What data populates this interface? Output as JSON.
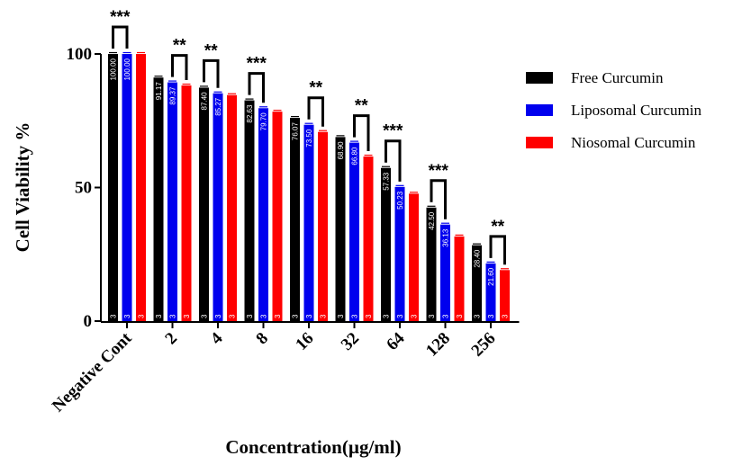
{
  "chart_data": {
    "type": "bar",
    "xlabel": "Concentration(µg/ml)",
    "ylabel": "Cell Viability %",
    "ylim": [
      0,
      100
    ],
    "yticks": [
      0,
      50,
      100
    ],
    "categories": [
      "Negative Cont",
      "2",
      "4",
      "8",
      "16",
      "32",
      "64",
      "128",
      "256"
    ],
    "series": [
      {
        "name": "Free Curcumin",
        "color": "#000000",
        "values": [
          100.0,
          91.17,
          87.4,
          82.63,
          76.07,
          68.9,
          57.33,
          42.5,
          28.4
        ],
        "value_labels": [
          "100.00",
          "91.17",
          "87.40",
          "82.63",
          "76.07",
          "68.90",
          "57.33",
          "42.50",
          "28.40"
        ]
      },
      {
        "name": "Liposomal Curcumin",
        "color": "#0000ee",
        "values": [
          100.0,
          89.37,
          85.27,
          79.7,
          73.5,
          66.8,
          50.23,
          36.13,
          21.6
        ],
        "value_labels": [
          "100.00",
          "89.37",
          "85.27",
          "79.70",
          "73.50",
          "66.80",
          "50.23",
          "36.13",
          "21.60"
        ]
      },
      {
        "name": "Niosomal Curcumin",
        "color": "#ff0000",
        "values": [
          100.0,
          88.2,
          84.6,
          78.4,
          70.8,
          61.6,
          47.7,
          31.7,
          19.1
        ],
        "value_labels": [
          "",
          "",
          "",
          "",
          "",
          "",
          "",
          "",
          ""
        ]
      }
    ],
    "n_label": "3",
    "significance": [
      {
        "label": "***",
        "category": 0,
        "from_series": 0,
        "to_series": 1
      },
      {
        "label": "**",
        "category": 1,
        "from_series": 1,
        "to_series": 2
      },
      {
        "label": "**",
        "category": 2,
        "from_series": 0,
        "to_series": 1
      },
      {
        "label": "***",
        "category": 3,
        "from_series": 0,
        "to_series": 1
      },
      {
        "label": "**",
        "category": 4,
        "from_series": 1,
        "to_series": 2
      },
      {
        "label": "**",
        "category": 5,
        "from_series": 1,
        "to_series": 2
      },
      {
        "label": "***",
        "category": 6,
        "from_series": 0,
        "to_series": 1
      },
      {
        "label": "***",
        "category": 7,
        "from_series": 0,
        "to_series": 1
      },
      {
        "label": "**",
        "category": 8,
        "from_series": 1,
        "to_series": 2
      }
    ],
    "legend_position": "right"
  }
}
